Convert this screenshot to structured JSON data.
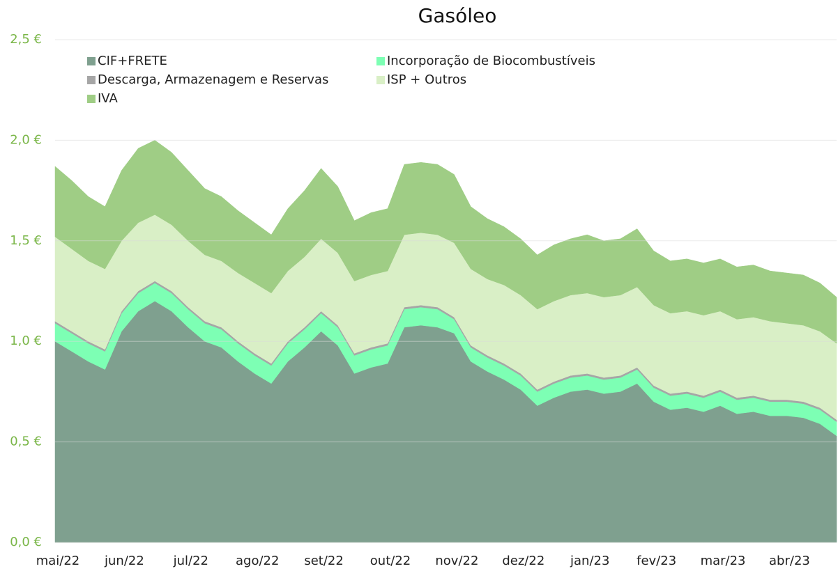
{
  "chart_data": {
    "type": "stacked_area",
    "title": "Gasóleo",
    "categories": [
      "mai/22",
      null,
      null,
      null,
      "jun/22",
      null,
      null,
      null,
      "jul/22",
      null,
      null,
      null,
      "ago/22",
      null,
      null,
      null,
      "set/22",
      null,
      null,
      null,
      "out/22",
      null,
      null,
      null,
      "nov/22",
      null,
      null,
      null,
      "dez/22",
      null,
      null,
      null,
      "jan/23",
      null,
      null,
      null,
      "fev/23",
      null,
      null,
      null,
      "mar/23",
      null,
      null,
      null,
      "abr/23",
      null,
      null,
      null
    ],
    "series": [
      {
        "name": "CIF+FRETE",
        "color": "#7fa08f",
        "values": [
          1.0,
          0.95,
          0.9,
          0.86,
          1.05,
          1.15,
          1.2,
          1.15,
          1.07,
          1.0,
          0.97,
          0.9,
          0.84,
          0.79,
          0.9,
          0.97,
          1.05,
          0.98,
          0.84,
          0.87,
          0.89,
          1.07,
          1.08,
          1.07,
          1.04,
          0.9,
          0.85,
          0.81,
          0.76,
          0.68,
          0.72,
          0.75,
          0.76,
          0.74,
          0.75,
          0.79,
          0.7,
          0.66,
          0.67,
          0.65,
          0.68,
          0.64,
          0.65,
          0.63,
          0.63,
          0.62,
          0.59,
          0.53
        ]
      },
      {
        "name": "Incorporação de Biocombustíveis",
        "color": "#7dffb4",
        "values": [
          0.09,
          0.09,
          0.09,
          0.09,
          0.09,
          0.09,
          0.09,
          0.09,
          0.09,
          0.09,
          0.09,
          0.09,
          0.09,
          0.09,
          0.09,
          0.09,
          0.09,
          0.09,
          0.09,
          0.09,
          0.09,
          0.09,
          0.09,
          0.09,
          0.07,
          0.07,
          0.07,
          0.07,
          0.07,
          0.07,
          0.07,
          0.07,
          0.07,
          0.07,
          0.07,
          0.07,
          0.07,
          0.07,
          0.07,
          0.07,
          0.07,
          0.07,
          0.07,
          0.07,
          0.07,
          0.07,
          0.07,
          0.07
        ]
      },
      {
        "name": "Descarga, Armazenagem e Reservas",
        "color": "#a6a6a6",
        "values": [
          0.01,
          0.01,
          0.01,
          0.01,
          0.01,
          0.01,
          0.01,
          0.01,
          0.01,
          0.01,
          0.01,
          0.01,
          0.01,
          0.01,
          0.01,
          0.01,
          0.01,
          0.01,
          0.01,
          0.01,
          0.01,
          0.01,
          0.01,
          0.01,
          0.01,
          0.01,
          0.01,
          0.01,
          0.01,
          0.01,
          0.01,
          0.01,
          0.01,
          0.01,
          0.01,
          0.01,
          0.01,
          0.01,
          0.01,
          0.01,
          0.01,
          0.01,
          0.01,
          0.01,
          0.01,
          0.01,
          0.01,
          0.01
        ]
      },
      {
        "name": "ISP + Outros",
        "color": "#d9efc6",
        "values": [
          0.42,
          0.41,
          0.4,
          0.4,
          0.35,
          0.34,
          0.33,
          0.33,
          0.33,
          0.33,
          0.33,
          0.34,
          0.35,
          0.35,
          0.35,
          0.35,
          0.36,
          0.36,
          0.36,
          0.36,
          0.36,
          0.36,
          0.36,
          0.36,
          0.37,
          0.38,
          0.38,
          0.39,
          0.39,
          0.4,
          0.4,
          0.4,
          0.4,
          0.4,
          0.4,
          0.4,
          0.4,
          0.4,
          0.4,
          0.4,
          0.39,
          0.39,
          0.39,
          0.39,
          0.38,
          0.38,
          0.38,
          0.38
        ]
      },
      {
        "name": "IVA",
        "color": "#9fcd85",
        "values": [
          0.35,
          0.34,
          0.32,
          0.31,
          0.35,
          0.37,
          0.37,
          0.36,
          0.35,
          0.33,
          0.32,
          0.31,
          0.3,
          0.29,
          0.31,
          0.33,
          0.35,
          0.33,
          0.3,
          0.31,
          0.31,
          0.35,
          0.35,
          0.35,
          0.34,
          0.31,
          0.3,
          0.29,
          0.28,
          0.27,
          0.28,
          0.28,
          0.29,
          0.28,
          0.28,
          0.29,
          0.27,
          0.26,
          0.26,
          0.26,
          0.26,
          0.26,
          0.26,
          0.25,
          0.25,
          0.25,
          0.24,
          0.23
        ]
      }
    ],
    "ylim": [
      0,
      2.5
    ],
    "yticks": [
      {
        "value": 0,
        "label": "0,0 €"
      },
      {
        "value": 0.5,
        "label": "0,5 €"
      },
      {
        "value": 1.0,
        "label": "1,0 €"
      },
      {
        "value": 1.5,
        "label": "1,5 €"
      },
      {
        "value": 2.0,
        "label": "2,0 €"
      },
      {
        "value": 2.5,
        "label": "2,5 €"
      }
    ],
    "grid": true,
    "legend": "top-left"
  }
}
